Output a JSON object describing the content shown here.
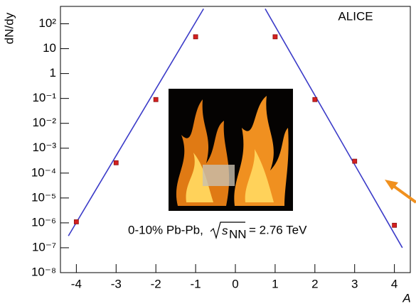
{
  "chart_data": {
    "type": "scatter",
    "title": "ALICE",
    "xlabel": "A",
    "ylabel": "dN/dy",
    "annotation": {
      "system": "0-10% Pb-Pb,",
      "s": "s",
      "sub": "NN",
      "energy": "= 2.76 TeV"
    },
    "x": [
      -4,
      -3,
      -2,
      -1,
      1,
      2,
      3,
      4
    ],
    "values": [
      1.1e-06,
      0.00026,
      0.09,
      30,
      30,
      0.09,
      0.0003,
      8e-07
    ],
    "color": "#d42020",
    "fits": [
      {
        "x": [
          -4.2,
          -0.8
        ],
        "values": [
          3e-07,
          400
        ],
        "color": "#3b3bc8"
      },
      {
        "x": [
          0.75,
          4.2
        ],
        "values": [
          400,
          1e-07
        ],
        "color": "#3b3bc8"
      }
    ],
    "xlim": [
      -4.4,
      4.4
    ],
    "xticks": [
      -4,
      -3,
      -2,
      -1,
      0,
      1,
      2,
      3,
      4
    ],
    "ylog": true,
    "ylim": [
      1e-08,
      500
    ],
    "yticks": [
      {
        "value": 100,
        "label": "10²"
      },
      10,
      1,
      {
        "value": 0.1,
        "label": "10⁻¹"
      },
      {
        "value": 0.01,
        "label": "10⁻²"
      },
      {
        "value": 0.001,
        "label": "10⁻³"
      },
      {
        "value": 0.0001,
        "label": "10⁻⁴"
      },
      {
        "value": 1e-05,
        "label": "10⁻⁵"
      },
      {
        "value": 1e-06,
        "label": "10⁻⁶"
      },
      {
        "value": 1e-07,
        "label": "10⁻⁷"
      },
      {
        "value": 1e-08,
        "label": "10⁻⁸"
      }
    ]
  }
}
